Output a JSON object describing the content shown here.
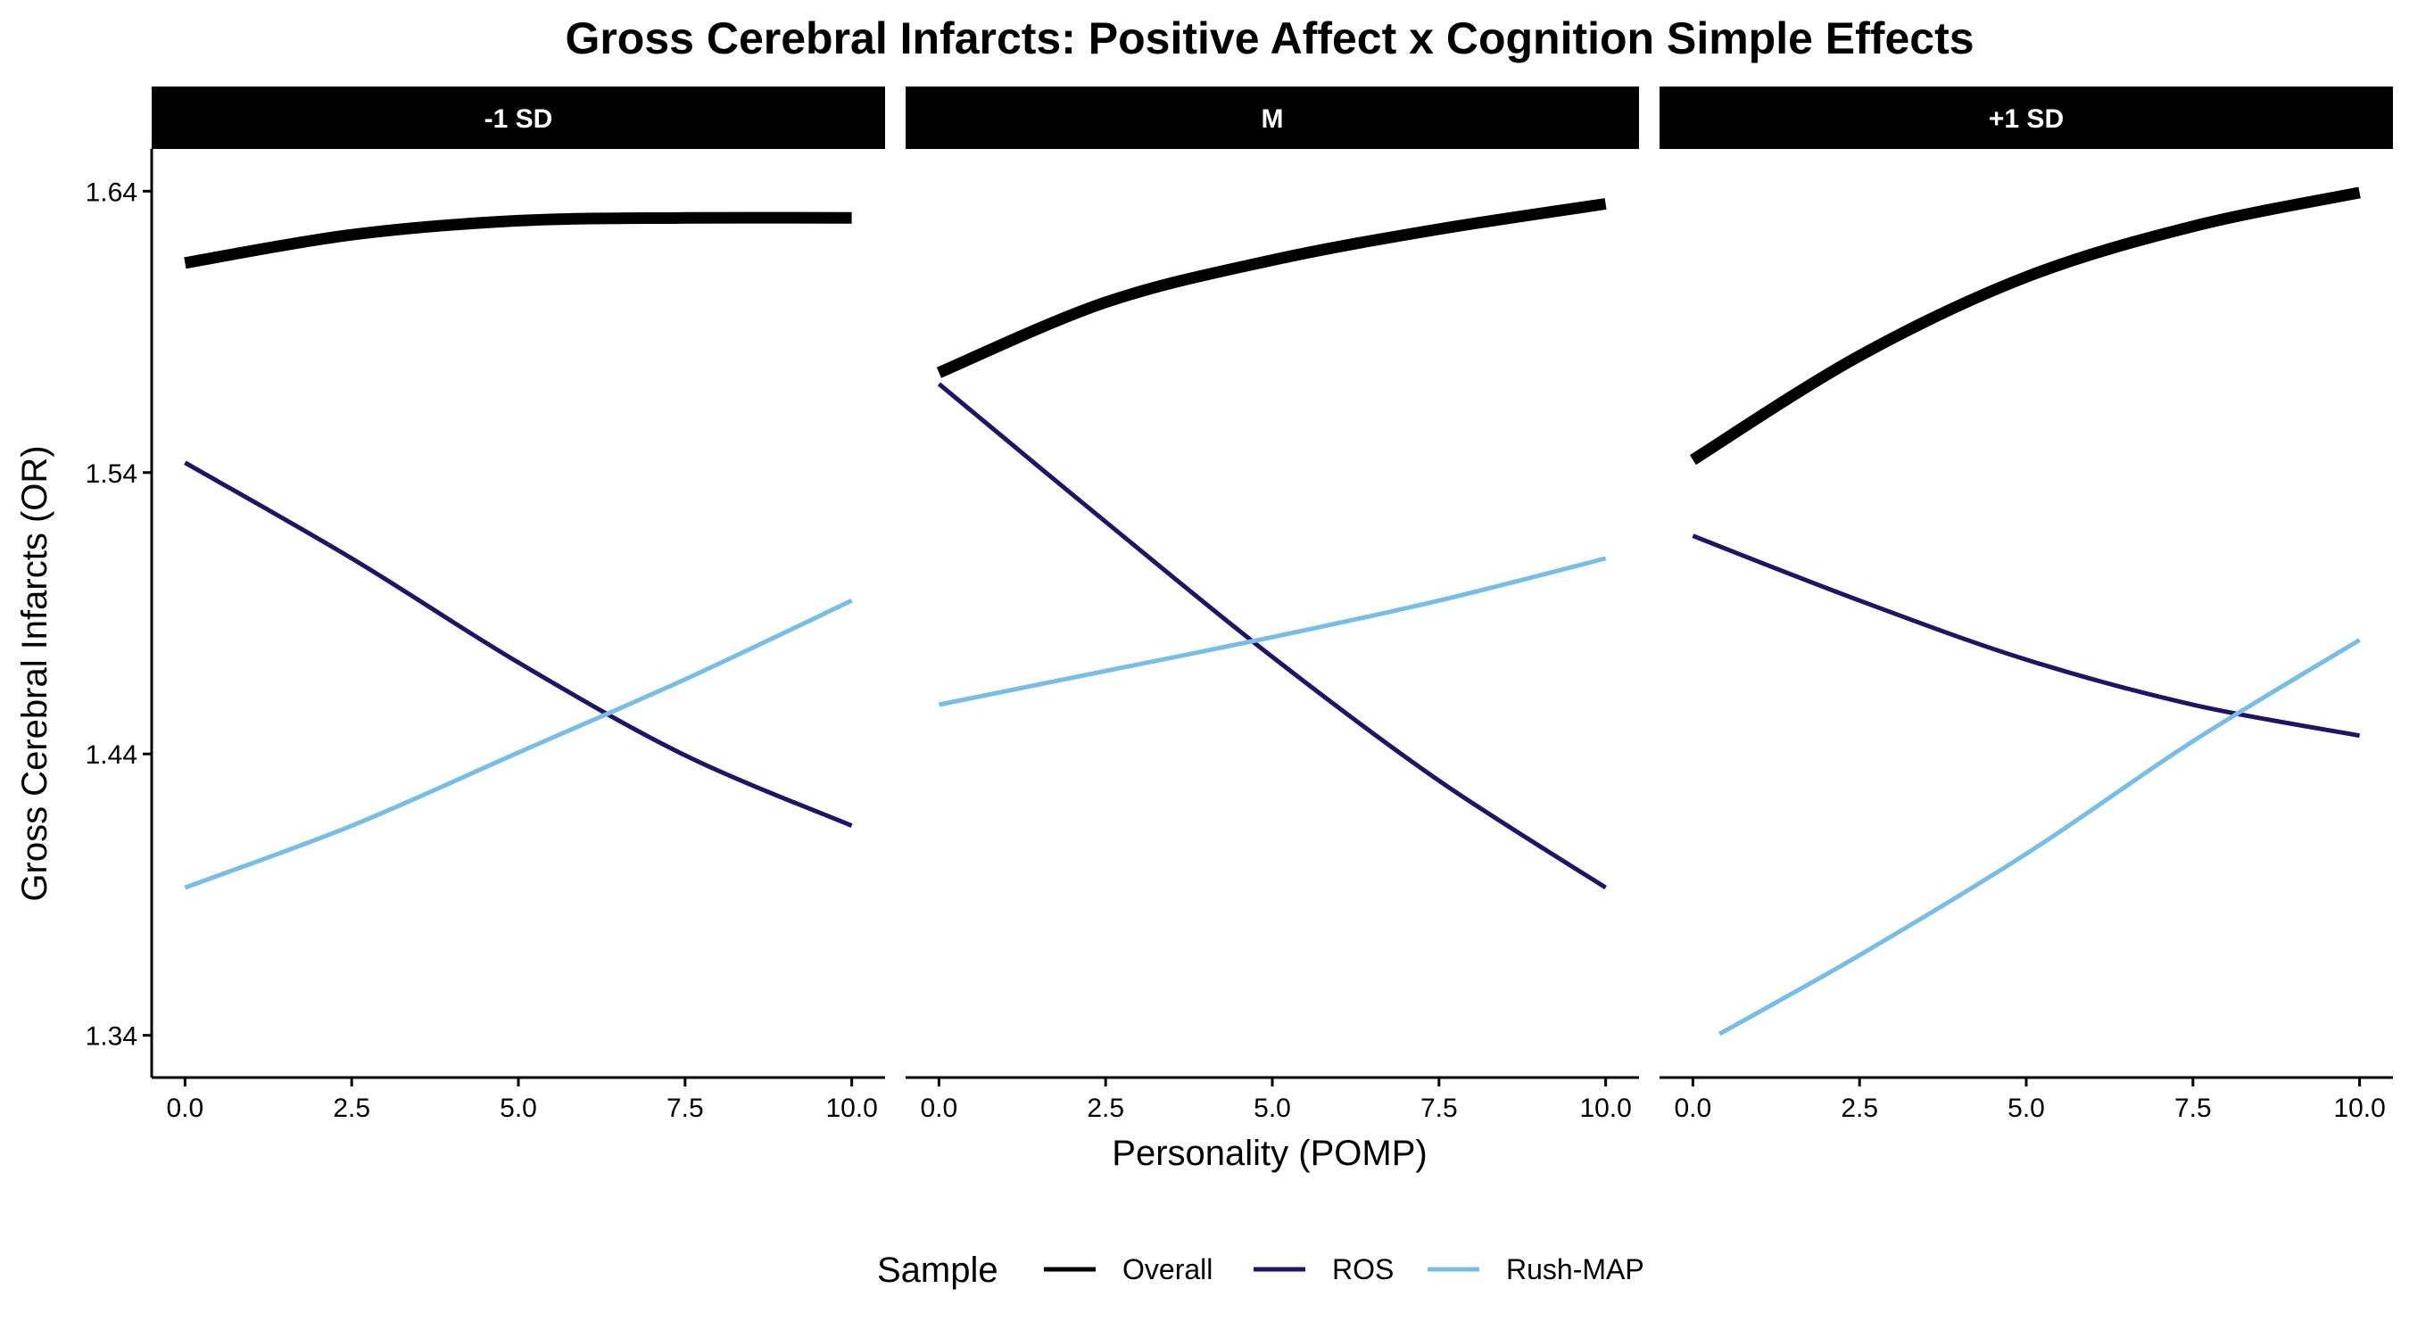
{
  "chart_data": {
    "type": "line",
    "title": "Gross Cerebral Infarcts: Positive Affect x Cognition Simple Effects",
    "xlabel": "Personality (POMP)",
    "ylabel": "Gross Cerebral Infarcts (OR)",
    "xlim": [
      -0.5,
      10.5
    ],
    "ylim": [
      1.325,
      1.655
    ],
    "x_ticks": [
      0.0,
      2.5,
      5.0,
      7.5,
      10.0
    ],
    "x_tick_labels": [
      "0.0",
      "2.5",
      "5.0",
      "7.5",
      "10.0"
    ],
    "y_ticks": [
      1.34,
      1.44,
      1.54,
      1.64
    ],
    "y_tick_labels": [
      "1.34",
      "1.44",
      "1.54",
      "1.64"
    ],
    "grid": false,
    "legend": {
      "title": "Sample",
      "position": "bottom",
      "entries": [
        "Overall",
        "ROS",
        "Rush-MAP"
      ]
    },
    "series_styles": {
      "Overall": {
        "color": "#000000",
        "weight": "thick"
      },
      "ROS": {
        "color": "#1f1466",
        "weight": "thin"
      },
      "Rush-MAP": {
        "color": "#77bde8",
        "weight": "thin"
      }
    },
    "panels": [
      {
        "label": "-1 SD",
        "series": [
          {
            "name": "Overall",
            "x": [
              0,
              2.5,
              5,
              7.5,
              10
            ],
            "y": [
              1.6145,
              1.6245,
              1.6295,
              1.6305,
              1.6305
            ]
          },
          {
            "name": "ROS",
            "x": [
              0,
              2.5,
              5,
              7.5,
              10
            ],
            "y": [
              1.5435,
              1.5095,
              1.4725,
              1.4395,
              1.4145
            ]
          },
          {
            "name": "Rush-MAP",
            "x": [
              0,
              2.5,
              5,
              7.5,
              10
            ],
            "y": [
              1.3925,
              1.4145,
              1.4405,
              1.4665,
              1.4945
            ]
          }
        ]
      },
      {
        "label": "M",
        "series": [
          {
            "name": "Overall",
            "x": [
              0,
              2.5,
              5,
              7.5,
              10
            ],
            "y": [
              1.5755,
              1.6005,
              1.6155,
              1.6265,
              1.6355
            ]
          },
          {
            "name": "ROS",
            "x": [
              0,
              2.5,
              5,
              7.5,
              10
            ],
            "y": [
              1.5715,
              1.5225,
              1.4745,
              1.4305,
              1.3925
            ]
          },
          {
            "name": "Rush-MAP",
            "x": [
              0,
              2.5,
              5,
              7.5,
              10
            ],
            "y": [
              1.4575,
              1.4695,
              1.4815,
              1.4945,
              1.5095
            ]
          }
        ]
      },
      {
        "label": "+1 SD",
        "series": [
          {
            "name": "Overall",
            "x": [
              0,
              2.5,
              5,
              7.5,
              10
            ],
            "y": [
              1.5445,
              1.5815,
              1.6095,
              1.6275,
              1.6395
            ]
          },
          {
            "name": "ROS",
            "x": [
              0,
              2.5,
              5,
              7.5,
              10
            ],
            "y": [
              1.5175,
              1.4945,
              1.4735,
              1.4575,
              1.4465
            ]
          },
          {
            "name": "Rush-MAP",
            "x": [
              0.4,
              2.5,
              5,
              7.5,
              10
            ],
            "y": [
              1.3405,
              1.3685,
              1.4045,
              1.4445,
              1.4805
            ]
          }
        ]
      }
    ]
  }
}
